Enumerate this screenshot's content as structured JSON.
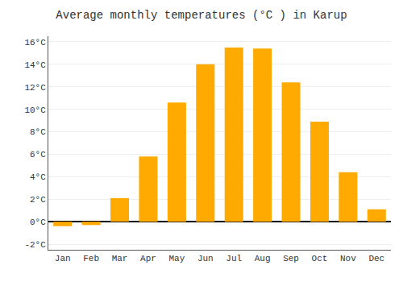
{
  "chart_data": {
    "type": "bar",
    "title": "Average monthly temperatures (°C ) in Karup",
    "categories": [
      "Jan",
      "Feb",
      "Mar",
      "Apr",
      "May",
      "Jun",
      "Jul",
      "Aug",
      "Sep",
      "Oct",
      "Nov",
      "Dec"
    ],
    "values": [
      -0.4,
      -0.3,
      2.1,
      5.8,
      10.6,
      14.0,
      15.5,
      15.4,
      12.4,
      8.9,
      4.4,
      1.1
    ],
    "color": "#FFAA00",
    "ylim": [
      -2.5,
      16.5
    ],
    "yticks": [
      {
        "value": -2,
        "label": "-2°C"
      },
      {
        "value": 0,
        "label": "0°C"
      },
      {
        "value": 2,
        "label": "2°C"
      },
      {
        "value": 4,
        "label": "4°C"
      },
      {
        "value": 6,
        "label": "6°C"
      },
      {
        "value": 8,
        "label": "8°C"
      },
      {
        "value": 10,
        "label": "10°C"
      },
      {
        "value": 12,
        "label": "12°C"
      },
      {
        "value": 14,
        "label": "14°C"
      },
      {
        "value": 16,
        "label": "16°C"
      }
    ],
    "grid": true
  }
}
